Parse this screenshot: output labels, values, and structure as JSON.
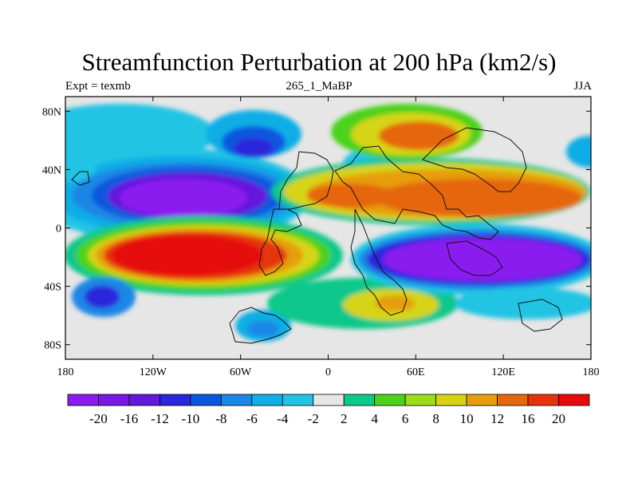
{
  "title": "Streamfunction Perturbation at 200 hPa (km2/s)",
  "left_label": "Expt = texmb",
  "center_label": "265_1_MaBP",
  "right_label": "JJA",
  "x_ticks": [
    "180",
    "120W",
    "60W",
    "0",
    "60E",
    "120E",
    "180"
  ],
  "y_ticks": [
    "80N",
    "40N",
    "0",
    "40S",
    "80S"
  ],
  "colorbar": {
    "labels": [
      "-20",
      "-16",
      "-12",
      "-10",
      "-8",
      "-6",
      "-4",
      "-2",
      "2",
      "4",
      "6",
      "8",
      "10",
      "12",
      "16",
      "20"
    ],
    "colors": [
      "#8b1cf0",
      "#7a18e6",
      "#6418dc",
      "#2a26dc",
      "#0a56de",
      "#1a86e6",
      "#11aee6",
      "#22c4e4",
      "#e6e6e6",
      "#0ec88a",
      "#4cd21c",
      "#9cdc1a",
      "#d6d412",
      "#e69e0e",
      "#e6660a",
      "#e6340a",
      "#e60a0a"
    ]
  },
  "field_features": [
    {
      "label": "+20",
      "lon": -95,
      "lat": -25
    },
    {
      "label": "+16",
      "lon": 30,
      "lat": 17
    },
    {
      "label": "+16",
      "lon": 120,
      "lat": 20
    },
    {
      "label": "+16",
      "lon": 70,
      "lat": 62
    },
    {
      "label": "-20",
      "lon": -110,
      "lat": 20
    },
    {
      "label": "-20",
      "lon": 105,
      "lat": -22
    },
    {
      "label": "-12",
      "lon": -50,
      "lat": 52
    },
    {
      "label": "-10",
      "lon": -155,
      "lat": -45
    },
    {
      "label": "-6",
      "lon": -45,
      "lat": -63
    },
    {
      "label": "+8",
      "lon": 48,
      "lat": -48
    }
  ]
}
